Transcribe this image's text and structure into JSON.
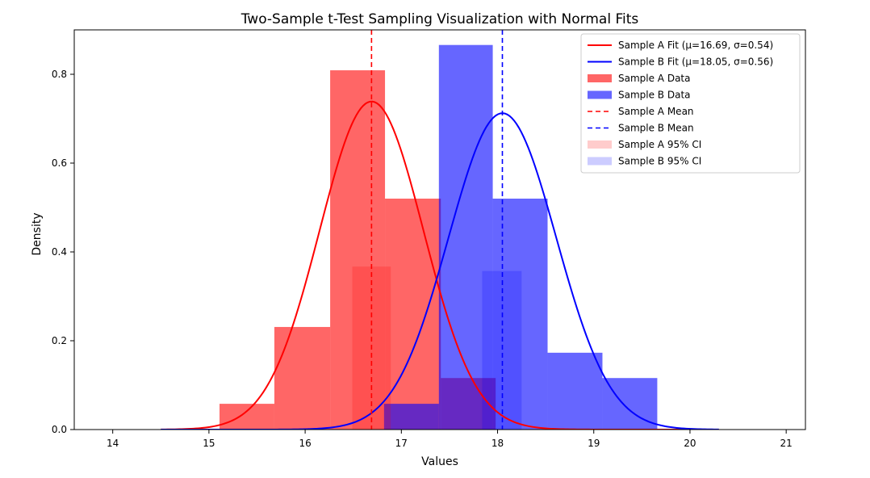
{
  "chart_data": {
    "type": "histogram",
    "title": "Two-Sample t-Test Sampling Visualization with Normal Fits",
    "xlabel": "Values",
    "ylabel": "Density",
    "xlim": [
      13.6,
      21.2
    ],
    "ylim": [
      0,
      0.9
    ],
    "x_ticks": [
      14,
      15,
      16,
      17,
      18,
      19,
      20,
      21
    ],
    "y_ticks": [
      0.0,
      0.2,
      0.4,
      0.6,
      0.8
    ],
    "x_tick_labels": [
      "14",
      "15",
      "16",
      "17",
      "18",
      "19",
      "20",
      "21"
    ],
    "y_tick_labels": [
      "0.0",
      "0.2",
      "0.4",
      "0.6",
      "0.8"
    ],
    "grid": false,
    "legend_position": "top-right",
    "series": [
      {
        "name": "Sample A Data",
        "kind": "histogram",
        "color": "#ff0000",
        "alpha": 0.6,
        "bins": [
          {
            "x0": 15.11,
            "x1": 15.68,
            "density": 0.058
          },
          {
            "x0": 15.68,
            "x1": 16.26,
            "density": 0.231
          },
          {
            "x0": 16.26,
            "x1": 16.83,
            "density": 0.809
          },
          {
            "x0": 16.83,
            "x1": 17.41,
            "density": 0.52
          },
          {
            "x0": 17.41,
            "x1": 17.98,
            "density": 0.116
          }
        ]
      },
      {
        "name": "Sample B Data",
        "kind": "histogram",
        "color": "#0000ff",
        "alpha": 0.6,
        "bins": [
          {
            "x0": 16.82,
            "x1": 17.39,
            "density": 0.058
          },
          {
            "x0": 17.39,
            "x1": 17.95,
            "density": 0.866
          },
          {
            "x0": 17.95,
            "x1": 18.52,
            "density": 0.52
          },
          {
            "x0": 18.52,
            "x1": 19.09,
            "density": 0.173
          },
          {
            "x0": 19.09,
            "x1": 19.66,
            "density": 0.116
          }
        ]
      },
      {
        "name": "Sample A Fit (μ=16.69, σ=0.54)",
        "kind": "normal_fit",
        "color": "#ff0000",
        "mu": 16.69,
        "sigma": 0.54,
        "x_range": [
          14.5,
          20.3
        ]
      },
      {
        "name": "Sample B Fit (μ=18.05, σ=0.56)",
        "kind": "normal_fit",
        "color": "#0000ff",
        "mu": 18.05,
        "sigma": 0.56,
        "x_range": [
          14.5,
          20.3
        ]
      },
      {
        "name": "Sample A Mean",
        "kind": "vline",
        "color": "#ff0000",
        "x": 16.69
      },
      {
        "name": "Sample B Mean",
        "kind": "vline",
        "color": "#0000ff",
        "x": 18.05
      },
      {
        "name": "Sample A 95% CI",
        "kind": "ci_band",
        "color": "#ff0000",
        "alpha": 0.2,
        "x0": 16.49,
        "x1": 16.89,
        "height": 0.367
      },
      {
        "name": "Sample B 95% CI",
        "kind": "ci_band",
        "color": "#0000ff",
        "alpha": 0.2,
        "x0": 17.84,
        "x1": 18.25,
        "height": 0.357
      }
    ],
    "legend": [
      {
        "label": "Sample A Fit (μ=16.69, σ=0.54)",
        "style": "line",
        "color": "#ff0000"
      },
      {
        "label": "Sample B Fit (μ=18.05, σ=0.56)",
        "style": "line",
        "color": "#0000ff"
      },
      {
        "label": "Sample A Data",
        "style": "patch",
        "color": "#ff0000",
        "alpha": 0.6
      },
      {
        "label": "Sample B Data",
        "style": "patch",
        "color": "#0000ff",
        "alpha": 0.6
      },
      {
        "label": "Sample A Mean",
        "style": "dashed",
        "color": "#ff0000"
      },
      {
        "label": "Sample B Mean",
        "style": "dashed",
        "color": "#0000ff"
      },
      {
        "label": "Sample A 95% CI",
        "style": "patch",
        "color": "#ff0000",
        "alpha": 0.2
      },
      {
        "label": "Sample B 95% CI",
        "style": "patch",
        "color": "#0000ff",
        "alpha": 0.2
      }
    ]
  }
}
